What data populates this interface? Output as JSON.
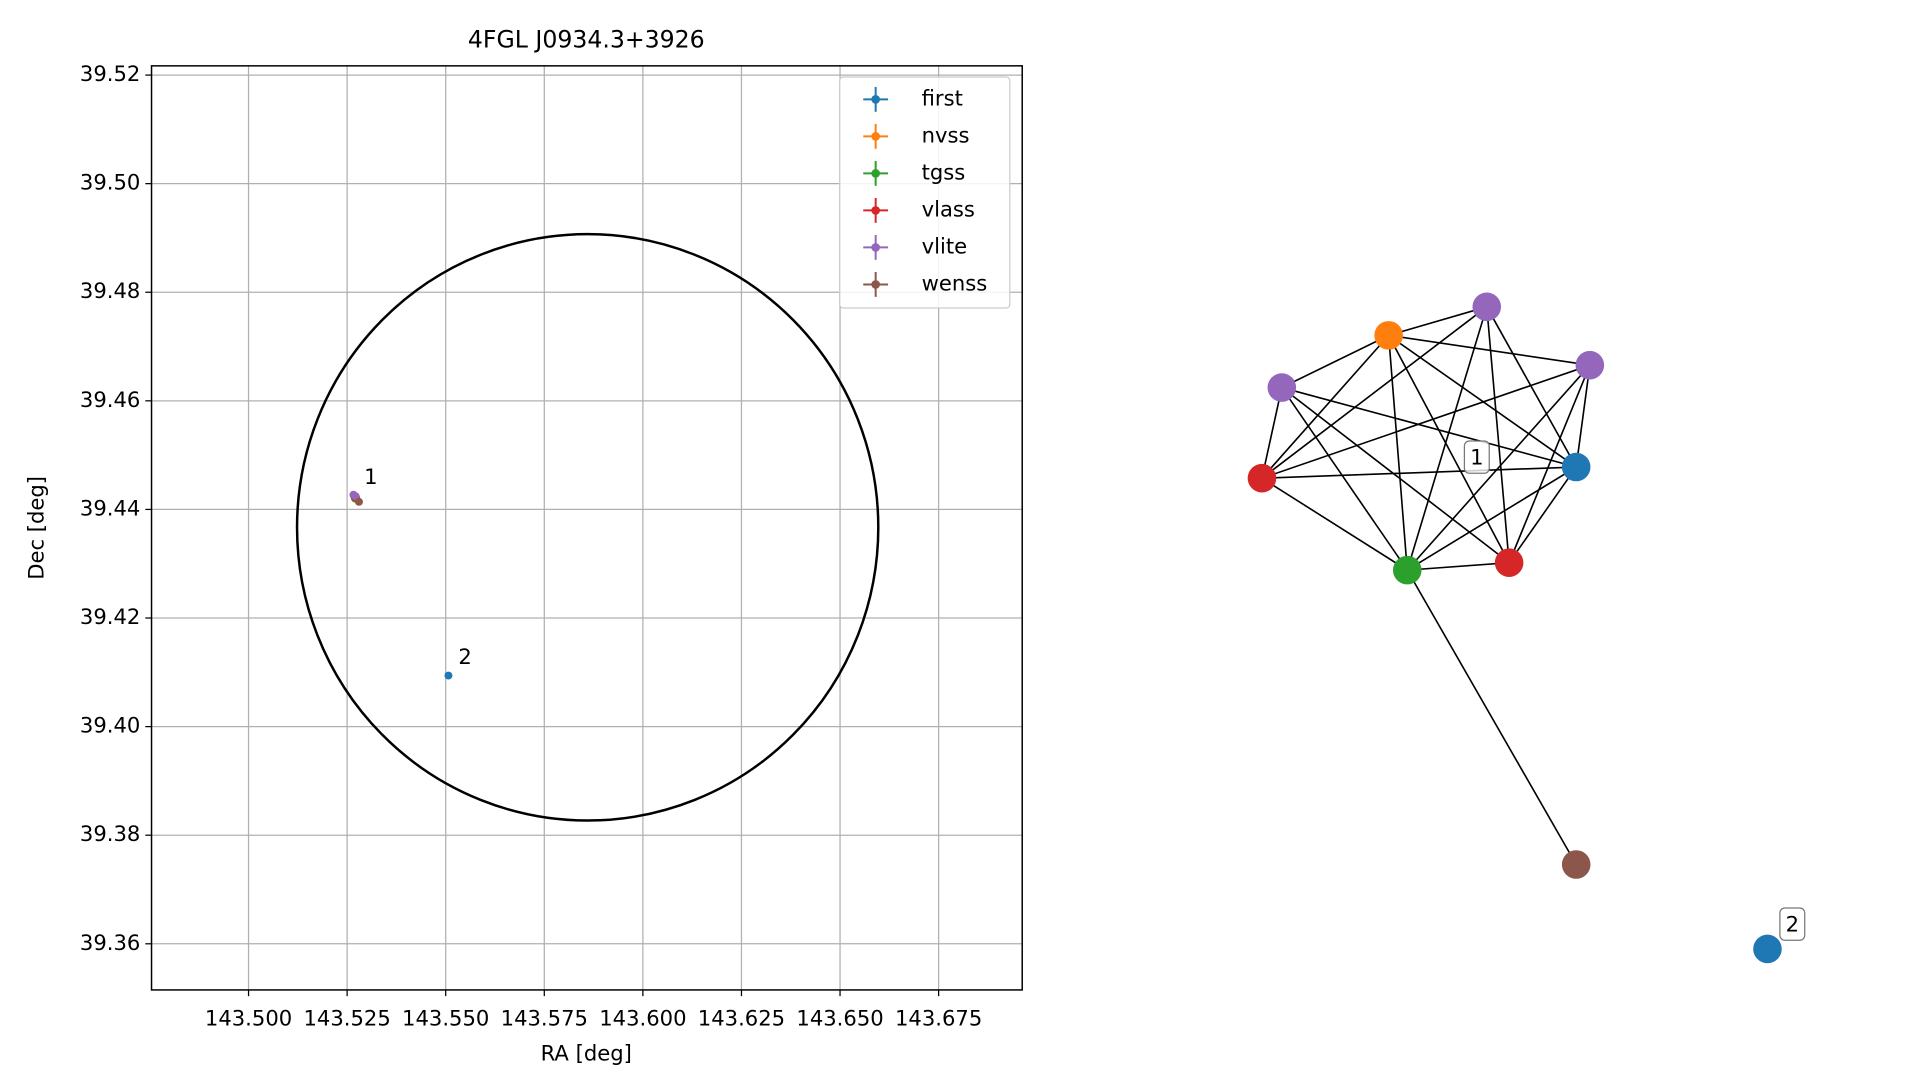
{
  "chart_data": [
    {
      "type": "scatter",
      "title": "4FGL J0934.3+3926",
      "xlabel": "RA [deg]",
      "ylabel": "Dec [deg]",
      "xlim": [
        143.4754,
        143.6962
      ],
      "ylim": [
        39.3515,
        39.5217
      ],
      "xticks": [
        {
          "value": 143.5,
          "label": "143.500"
        },
        {
          "value": 143.525,
          "label": "143.525"
        },
        {
          "value": 143.55,
          "label": "143.550"
        },
        {
          "value": 143.575,
          "label": "143.575"
        },
        {
          "value": 143.6,
          "label": "143.600"
        },
        {
          "value": 143.625,
          "label": "143.625"
        },
        {
          "value": 143.65,
          "label": "143.650"
        },
        {
          "value": 143.675,
          "label": "143.675"
        }
      ],
      "yticks": [
        39.36,
        39.38,
        {
          "value": 39.4,
          "label": "39.40"
        },
        39.42,
        39.44,
        39.46,
        39.48,
        {
          "value": 39.5,
          "label": "39.50"
        },
        39.52
      ],
      "grid": true,
      "legend": "upper right",
      "circle": {
        "center": [
          143.586,
          39.4367
        ],
        "width": 0.1474,
        "height": 0.108,
        "color": "#000000"
      },
      "series": [
        {
          "name": "first",
          "color": "#1f77b4",
          "x": [
            143.5268,
            143.5507
          ],
          "y": [
            39.4424,
            39.4094
          ]
        },
        {
          "name": "nvss",
          "color": "#ff7f0e",
          "x": [
            143.5272
          ],
          "y": [
            39.4422
          ]
        },
        {
          "name": "tgss",
          "color": "#2ca02c",
          "x": [
            143.527
          ],
          "y": [
            39.442
          ]
        },
        {
          "name": "vlass",
          "color": "#d62728",
          "x": [
            143.5269,
            143.5273
          ],
          "y": [
            39.4423,
            39.4421
          ]
        },
        {
          "name": "vlite",
          "color": "#9467bd",
          "x": [
            143.5266,
            143.5268,
            143.5272
          ],
          "y": [
            39.4427,
            39.4426,
            39.4424
          ]
        },
        {
          "name": "wenss",
          "color": "#8c564b",
          "x": [
            143.528
          ],
          "y": [
            39.4414
          ]
        }
      ],
      "annotations": [
        {
          "text": "1",
          "x": 143.5268,
          "y": 39.4426
        },
        {
          "text": "2",
          "x": 143.5507,
          "y": 39.4094
        }
      ]
    },
    {
      "type": "network",
      "nodes": [
        {
          "color": "#ff7f0e"
        },
        {
          "color": "#9467bd"
        },
        {
          "color": "#9467bd"
        },
        {
          "color": "#9467bd"
        },
        {
          "color": "#d62728"
        },
        {
          "color": "#1f77b4"
        },
        {
          "color": "#2ca02c"
        },
        {
          "color": "#d62728"
        },
        {
          "color": "#8c564b"
        },
        {
          "color": "#1f77b4"
        }
      ],
      "edges": [
        [
          0,
          1
        ],
        [
          0,
          2
        ],
        [
          0,
          3
        ],
        [
          0,
          4
        ],
        [
          0,
          5
        ],
        [
          0,
          6
        ],
        [
          0,
          7
        ],
        [
          1,
          4
        ],
        [
          1,
          5
        ],
        [
          1,
          6
        ],
        [
          1,
          7
        ],
        [
          2,
          4
        ],
        [
          2,
          5
        ],
        [
          2,
          6
        ],
        [
          2,
          7
        ],
        [
          3,
          4
        ],
        [
          3,
          5
        ],
        [
          3,
          6
        ],
        [
          3,
          7
        ],
        [
          4,
          5
        ],
        [
          4,
          6
        ],
        [
          5,
          6
        ],
        [
          5,
          7
        ],
        [
          6,
          7
        ],
        [
          6,
          8
        ]
      ],
      "labels": [
        "1",
        "2"
      ]
    }
  ]
}
